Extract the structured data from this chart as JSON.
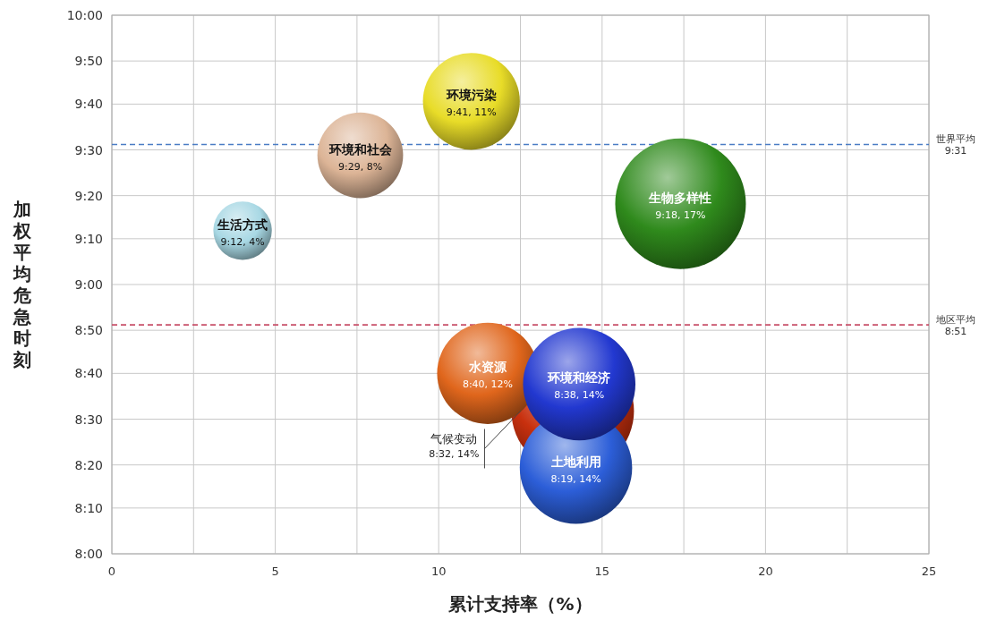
{
  "chart_data": {
    "type": "bubble",
    "xlabel": "累计支持率（%）",
    "ylabel": "加权平均危急时刻",
    "xlim": [
      0,
      25
    ],
    "xticks": [
      0,
      {
        "value": 2.5,
        "label": null
      },
      5,
      {
        "value": 7.5,
        "label": null
      },
      10,
      {
        "value": 12.5,
        "label": null
      },
      15,
      {
        "value": 17.5,
        "label": null
      },
      20,
      {
        "value": 22.5,
        "label": null
      },
      25
    ],
    "ylim": [
      8,
      10
    ],
    "yticks": [
      {
        "value": 8,
        "label": "8:00"
      },
      {
        "value": 8.17,
        "label": "8:10"
      },
      {
        "value": 8.33,
        "label": "8:20"
      },
      {
        "value": 8.5,
        "label": "8:30"
      },
      {
        "value": 8.67,
        "label": "8:40"
      },
      {
        "value": 8.83,
        "label": "8:50"
      },
      {
        "value": 9,
        "label": "9:00"
      },
      {
        "value": 9.17,
        "label": "9:10"
      },
      {
        "value": 9.33,
        "label": "9:20"
      },
      {
        "value": 9.5,
        "label": "9:30"
      },
      {
        "value": 9.67,
        "label": "9:40"
      },
      {
        "value": 9.83,
        "label": "9:50"
      },
      {
        "value": 10,
        "label": "10:00"
      }
    ],
    "grid": true,
    "ref_lines": [
      {
        "axis": "y",
        "value": 9.52,
        "label": "世界平均",
        "color": "#4a7cc4",
        "line_style": "dashed"
      },
      {
        "axis": "y",
        "value": 8.85,
        "label": "地区平均",
        "color": "#c8506a",
        "line_style": "dashed"
      }
    ],
    "annotations": [
      "9:31",
      "8:51"
    ],
    "series": [
      {
        "name": "生活方式",
        "color": "#a8d8e4",
        "x": [
          4
        ],
        "values": [
          9.2
        ],
        "sizes": [
          0.2
        ],
        "value_labels": [
          "9:12, 4%"
        ]
      },
      {
        "name": "环境和社会",
        "color": "#dcb496",
        "x": [
          7.6
        ],
        "values": [
          9.48
        ],
        "sizes": [
          0.43
        ],
        "value_labels": [
          "9:29, 8%"
        ]
      },
      {
        "name": "环境污染",
        "color": "#e8dc28",
        "x": [
          11
        ],
        "values": [
          9.68
        ],
        "sizes": [
          0.55
        ],
        "value_labels": [
          "9:41, 11%"
        ]
      },
      {
        "name": "生物多样性",
        "color": "#2f8a1c",
        "x": [
          17.4
        ],
        "values": [
          9.3
        ],
        "sizes": [
          1
        ],
        "value_labels": [
          "9:18, 17%"
        ]
      },
      {
        "name": "气候变动",
        "color": "#c8300e",
        "x": [
          14.1
        ],
        "values": [
          8.53
        ],
        "sizes": [
          0.88
        ],
        "value_labels": [
          "8:32, 14%"
        ]
      },
      {
        "name": "水资源",
        "color": "#e0661c",
        "x": [
          11.5
        ],
        "values": [
          8.67
        ],
        "sizes": [
          0.6
        ],
        "value_labels": [
          "8:40, 12%"
        ]
      },
      {
        "name": "土地利用",
        "color": "#2c5ed8",
        "x": [
          14.2
        ],
        "values": [
          8.32
        ],
        "sizes": [
          0.74
        ],
        "value_labels": [
          "8:19, 14%"
        ]
      },
      {
        "name": "环境和经济",
        "color": "#2238d0",
        "x": [
          14.3
        ],
        "values": [
          8.63
        ],
        "sizes": [
          0.74
        ],
        "value_labels": [
          "8:38, 14%"
        ]
      }
    ]
  }
}
